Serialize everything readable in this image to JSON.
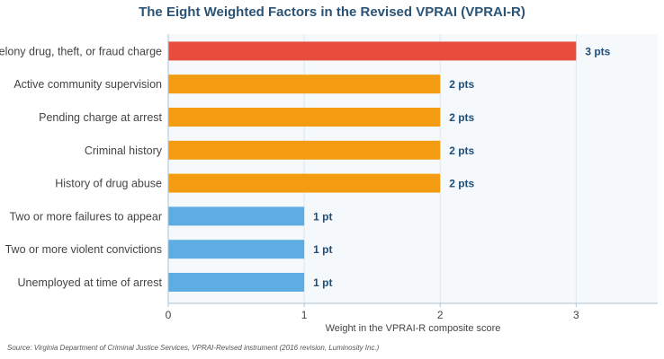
{
  "chart_data": {
    "type": "bar",
    "orientation": "horizontal",
    "title": "The Eight Weighted Factors in the Revised VPRAI (VPRAI-R)",
    "xlabel": "Weight in the VPRAI-R composite score",
    "ylabel": "",
    "xlim": [
      0,
      3.6
    ],
    "xticks": [
      "0",
      "1",
      "2",
      "3"
    ],
    "grid": true,
    "categories": [
      "Felony drug, theft, or fraud charge",
      "Active community supervision",
      "Pending charge at arrest",
      "Criminal history",
      "History of drug abuse",
      "Two or more failures to appear",
      "Two or more violent convictions",
      "Unemployed at time of arrest"
    ],
    "values": [
      3,
      2,
      2,
      2,
      2,
      1,
      1,
      1
    ],
    "data_labels": [
      "3 pts",
      "2 pts",
      "2 pts",
      "2 pts",
      "2 pts",
      "1 pt",
      "1 pt",
      "1 pt"
    ],
    "colors": {
      "3": "#e84c3d",
      "2": "#f39c12",
      "1": "#5dade2"
    },
    "label_color": "#1f4e79",
    "plot_background": "#f6f9fc",
    "grid_color": "#dde6ee",
    "axis_color": "#a9c3d6"
  },
  "source": "Source: Virginia Department of Criminal Justice Services, VPRAI-Revised instrument (2016 revision, Luminosity Inc.)"
}
